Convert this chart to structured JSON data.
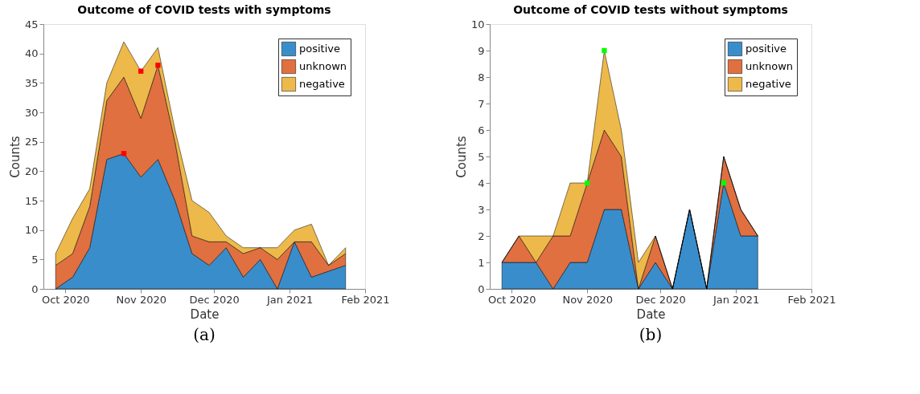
{
  "chart_data": [
    {
      "type": "area",
      "stacked": true,
      "title": "Outcome of COVID tests with symptoms",
      "xlabel": "Date",
      "ylabel": "Counts",
      "x": [
        "2020-09-27",
        "2020-10-04",
        "2020-10-11",
        "2020-10-18",
        "2020-10-25",
        "2020-11-01",
        "2020-11-08",
        "2020-11-15",
        "2020-11-22",
        "2020-11-29",
        "2020-12-06",
        "2020-12-13",
        "2020-12-20",
        "2020-12-27",
        "2021-01-03",
        "2021-01-10",
        "2021-01-17",
        "2021-01-24"
      ],
      "series": [
        {
          "name": "positive",
          "color": "#3a8dcb",
          "values": [
            0,
            2,
            7,
            22,
            23,
            19,
            22,
            15,
            6,
            4,
            7,
            2,
            5,
            0,
            8,
            2,
            3,
            4
          ]
        },
        {
          "name": "unknown",
          "color": "#e07040",
          "values": [
            4,
            4,
            7,
            10,
            13,
            10,
            16,
            10,
            3,
            4,
            1,
            4,
            2,
            5,
            0,
            6,
            1,
            2
          ]
        },
        {
          "name": "negative",
          "color": "#edb94a",
          "values": [
            2,
            6,
            3,
            3,
            6,
            8,
            3,
            2,
            6,
            5,
            1,
            1,
            0,
            2,
            2,
            3,
            0,
            1
          ]
        },
        {
          "type": "scatter",
          "color": "#ff0000",
          "marker": "square",
          "x": [
            "2020-10-25",
            "2020-11-01",
            "2020-11-08"
          ],
          "values": [
            23,
            37,
            38
          ]
        }
      ],
      "xlim": [
        "2020-09-22",
        "2021-02-01"
      ],
      "xticks": [
        {
          "value": "2020-10-01",
          "label": "Oct 2020"
        },
        {
          "value": "2020-11-01",
          "label": "Nov 2020"
        },
        {
          "value": "2020-12-01",
          "label": "Dec 2020"
        },
        {
          "value": "2021-01-01",
          "label": "Jan 2021"
        },
        {
          "value": "2021-02-01",
          "label": "Feb 2021"
        }
      ],
      "ylim": [
        0,
        45
      ],
      "yticks": [
        0,
        5,
        10,
        15,
        20,
        25,
        30,
        35,
        40,
        45
      ],
      "grid": false,
      "legend": "top right",
      "annotations": [
        "(a)"
      ]
    },
    {
      "type": "area",
      "stacked": true,
      "title": "Outcome of COVID tests without symptoms",
      "xlabel": "Date",
      "ylabel": "Counts",
      "x": [
        "2020-09-27",
        "2020-10-04",
        "2020-10-11",
        "2020-10-18",
        "2020-10-25",
        "2020-11-01",
        "2020-11-08",
        "2020-11-15",
        "2020-11-22",
        "2020-11-29",
        "2020-12-06",
        "2020-12-13",
        "2020-12-20",
        "2020-12-27",
        "2021-01-03",
        "2021-01-10"
      ],
      "series": [
        {
          "name": "positive",
          "color": "#3a8dcb",
          "values": [
            1,
            1,
            1,
            0,
            1,
            1,
            3,
            3,
            0,
            1,
            0,
            3,
            0,
            4,
            2,
            2
          ]
        },
        {
          "name": "unknown",
          "color": "#e07040",
          "values": [
            0,
            1,
            0,
            2,
            1,
            3,
            3,
            2,
            0,
            1,
            0,
            0,
            0,
            1,
            1,
            0
          ]
        },
        {
          "name": "negative",
          "color": "#edb94a",
          "values": [
            0,
            0,
            1,
            0,
            2,
            0,
            3,
            1,
            1,
            0,
            0,
            0,
            0,
            0,
            0,
            0
          ]
        },
        {
          "type": "scatter",
          "color": "#00ff00",
          "marker": "square",
          "x": [
            "2020-11-01",
            "2020-11-08",
            "2020-12-27"
          ],
          "values": [
            4,
            9,
            4
          ]
        }
      ],
      "xlim": [
        "2020-09-22",
        "2021-02-01"
      ],
      "xticks": [
        {
          "value": "2020-10-01",
          "label": "Oct 2020"
        },
        {
          "value": "2020-11-01",
          "label": "Nov 2020"
        },
        {
          "value": "2020-12-01",
          "label": "Dec 2020"
        },
        {
          "value": "2021-01-01",
          "label": "Jan 2021"
        },
        {
          "value": "2021-02-01",
          "label": "Feb 2021"
        }
      ],
      "ylim": [
        0,
        10
      ],
      "yticks": [
        0,
        1,
        2,
        3,
        4,
        5,
        6,
        7,
        8,
        9,
        10
      ],
      "grid": false,
      "legend": "top right",
      "annotations": [
        "(b)"
      ]
    }
  ]
}
